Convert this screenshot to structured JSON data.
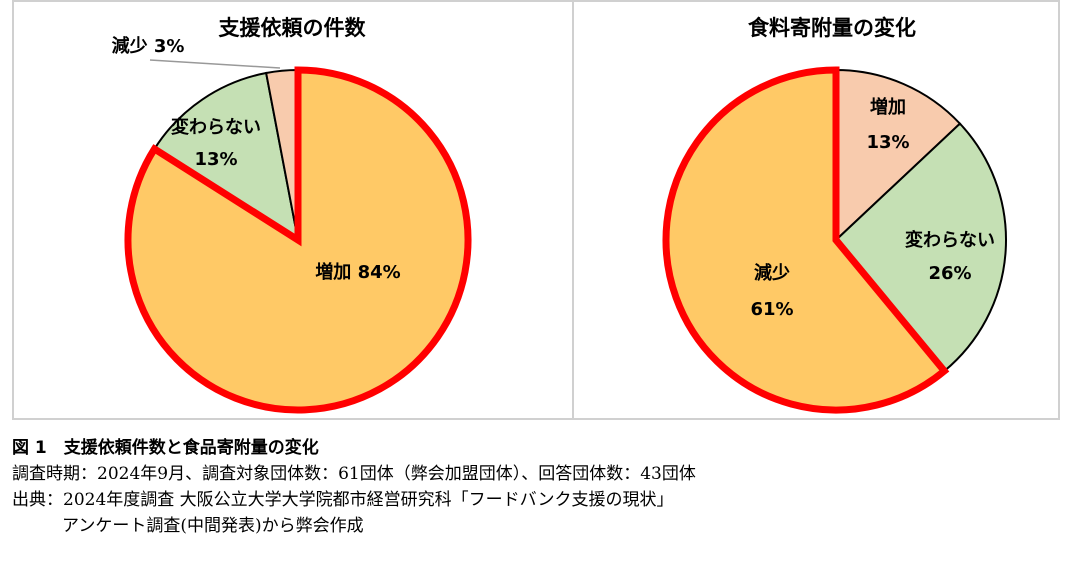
{
  "chart_data": [
    {
      "type": "pie",
      "title": "支援依頼の件数",
      "slices": [
        {
          "label": "増加",
          "value": 84,
          "display": "84%",
          "color": "#FFC966",
          "highlighted": true
        },
        {
          "label": "変わらない",
          "value": 13,
          "display": "13%",
          "color": "#C5E0B4",
          "highlighted": false
        },
        {
          "label": "減少",
          "value": 3,
          "display": "3%",
          "color": "#F8CBAD",
          "highlighted": false
        }
      ]
    },
    {
      "type": "pie",
      "title": "食料寄附量の変化",
      "slices": [
        {
          "label": "増加",
          "value": 13,
          "display": "13%",
          "color": "#F8CBAD",
          "highlighted": false
        },
        {
          "label": "変わらない",
          "value": 26,
          "display": "26%",
          "color": "#C5E0B4",
          "highlighted": false
        },
        {
          "label": "減少",
          "value": 61,
          "display": "61%",
          "color": "#FFC966",
          "highlighted": true
        }
      ]
    }
  ],
  "highlight_color": "#FF0000",
  "caption": {
    "title": "図 1　支援依頼件数と食品寄附量の変化",
    "line1": "調査時期：2024年9月、調査対象団体数：61団体（弊会加盟団体）、回答団体数：43団体",
    "line2": "出典：2024年度調査 大阪公立大学大学院都市経営研究科「フードバンク支援の現状」",
    "line3": "アンケート調査(中間発表)から弊会作成"
  }
}
